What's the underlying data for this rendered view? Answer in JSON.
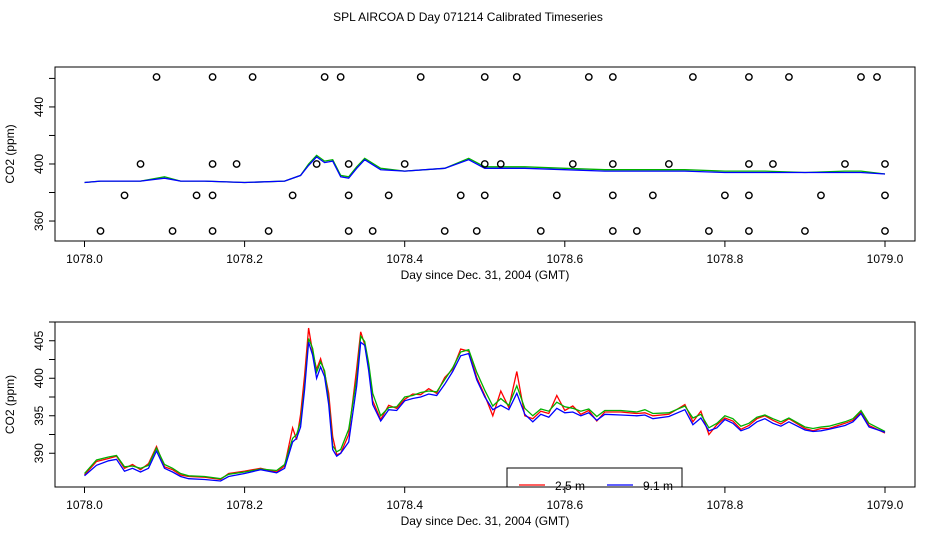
{
  "figure_title": "SPL AIRCOA D  Day 071214  Calibrated Timeseries",
  "colors": {
    "red": "#ff0000",
    "green": "#00b000",
    "blue": "#0000ff",
    "black": "#000000"
  },
  "chart_data": [
    {
      "type": "line",
      "title": "",
      "xlabel": "Day since Dec. 31, 2004 (GMT)",
      "ylabel": "CO2 (ppm)",
      "xlim": [
        1078.0,
        1079.0
      ],
      "ylim": [
        346,
        468
      ],
      "xticks": [
        "1078.0",
        "1078.2",
        "1078.4",
        "1078.6",
        "1078.8",
        "1079.0"
      ],
      "xtick_values": [
        1078.0,
        1078.2,
        1078.4,
        1078.6,
        1078.8,
        1079.0
      ],
      "yticks": [
        "360",
        "400",
        "440"
      ],
      "ytick_values": [
        360,
        400,
        440
      ],
      "series": [
        {
          "name": "green",
          "color": "green",
          "x": [
            1078.0,
            1078.02,
            1078.05,
            1078.07,
            1078.1,
            1078.12,
            1078.15,
            1078.2,
            1078.25,
            1078.27,
            1078.28,
            1078.29,
            1078.3,
            1078.31,
            1078.32,
            1078.33,
            1078.34,
            1078.35,
            1078.37,
            1078.4,
            1078.45,
            1078.48,
            1078.5,
            1078.55,
            1078.6,
            1078.65,
            1078.7,
            1078.75,
            1078.8,
            1078.85,
            1078.9,
            1078.95,
            1078.97,
            1079.0
          ],
          "values": [
            387,
            388,
            388,
            388,
            391,
            388,
            388,
            387,
            388,
            392,
            400,
            406,
            402,
            403,
            392,
            391,
            398,
            404,
            397,
            395,
            397,
            404,
            398,
            398,
            397,
            396,
            396,
            396,
            395,
            395,
            394,
            395,
            395,
            393
          ]
        },
        {
          "name": "blue",
          "color": "blue",
          "x": [
            1078.0,
            1078.02,
            1078.05,
            1078.07,
            1078.1,
            1078.12,
            1078.15,
            1078.2,
            1078.25,
            1078.27,
            1078.28,
            1078.29,
            1078.3,
            1078.31,
            1078.32,
            1078.33,
            1078.34,
            1078.35,
            1078.37,
            1078.4,
            1078.45,
            1078.48,
            1078.5,
            1078.55,
            1078.6,
            1078.65,
            1078.7,
            1078.75,
            1078.8,
            1078.85,
            1078.9,
            1078.95,
            1078.97,
            1079.0
          ],
          "values": [
            387,
            388,
            388,
            388,
            390,
            388,
            388,
            387,
            388,
            392,
            399,
            405,
            401,
            402,
            391,
            390,
            397,
            403,
            396,
            395,
            397,
            403,
            397,
            397,
            396,
            395,
            395,
            395,
            394,
            394,
            394,
            394,
            394,
            393
          ]
        }
      ],
      "points": {
        "x": [
          1078.09,
          1078.16,
          1078.21,
          1078.3,
          1078.32,
          1078.42,
          1078.5,
          1078.54,
          1078.63,
          1078.66,
          1078.76,
          1078.83,
          1078.88,
          1078.97,
          1078.99,
          1078.07,
          1078.16,
          1078.19,
          1078.29,
          1078.33,
          1078.4,
          1078.5,
          1078.52,
          1078.61,
          1078.66,
          1078.73,
          1078.83,
          1078.86,
          1078.95,
          1079.0,
          1078.05,
          1078.14,
          1078.16,
          1078.26,
          1078.33,
          1078.38,
          1078.47,
          1078.5,
          1078.59,
          1078.66,
          1078.71,
          1078.8,
          1078.83,
          1078.92,
          1079.0,
          1078.02,
          1078.11,
          1078.16,
          1078.23,
          1078.33,
          1078.36,
          1078.45,
          1078.49,
          1078.57,
          1078.66,
          1078.69,
          1078.78,
          1078.83,
          1078.9,
          1079.0
        ],
        "values": [
          461,
          461,
          461,
          461,
          461,
          461,
          461,
          461,
          461,
          461,
          461,
          461,
          461,
          461,
          461,
          400,
          400,
          400,
          400,
          400,
          400,
          400,
          400,
          400,
          400,
          400,
          400,
          400,
          400,
          400,
          378,
          378,
          378,
          378,
          378,
          378,
          378,
          378,
          378,
          378,
          378,
          378,
          378,
          378,
          378,
          353,
          353,
          353,
          353,
          353,
          353,
          353,
          353,
          353,
          353,
          353,
          353,
          353,
          353,
          353
        ]
      }
    },
    {
      "type": "line",
      "title": "",
      "xlabel": "Day since Dec. 31, 2004 (GMT)",
      "ylabel": "CO2 (ppm)",
      "xlim": [
        1078.0,
        1079.0
      ],
      "ylim": [
        385.5,
        407.5
      ],
      "xticks": [
        "1078.0",
        "1078.2",
        "1078.4",
        "1078.6",
        "1078.8",
        "1079.0"
      ],
      "xtick_values": [
        1078.0,
        1078.2,
        1078.4,
        1078.6,
        1078.8,
        1079.0
      ],
      "yticks": [
        "390",
        "395",
        "400",
        "405"
      ],
      "ytick_values": [
        390,
        395,
        400,
        405
      ],
      "x": [
        1078.0,
        1078.015,
        1078.03,
        1078.04,
        1078.05,
        1078.06,
        1078.07,
        1078.08,
        1078.09,
        1078.1,
        1078.11,
        1078.12,
        1078.13,
        1078.15,
        1078.17,
        1078.18,
        1078.2,
        1078.22,
        1078.24,
        1078.25,
        1078.26,
        1078.265,
        1078.27,
        1078.275,
        1078.28,
        1078.285,
        1078.29,
        1078.295,
        1078.3,
        1078.305,
        1078.31,
        1078.315,
        1078.32,
        1078.33,
        1078.34,
        1078.345,
        1078.35,
        1078.355,
        1078.36,
        1078.37,
        1078.38,
        1078.39,
        1078.4,
        1078.41,
        1078.42,
        1078.43,
        1078.44,
        1078.45,
        1078.46,
        1078.47,
        1078.48,
        1078.49,
        1078.5,
        1078.51,
        1078.52,
        1078.53,
        1078.54,
        1078.55,
        1078.56,
        1078.57,
        1078.58,
        1078.59,
        1078.6,
        1078.61,
        1078.62,
        1078.63,
        1078.64,
        1078.65,
        1078.67,
        1078.69,
        1078.7,
        1078.71,
        1078.73,
        1078.75,
        1078.76,
        1078.77,
        1078.78,
        1078.79,
        1078.8,
        1078.81,
        1078.82,
        1078.83,
        1078.84,
        1078.85,
        1078.86,
        1078.87,
        1078.88,
        1078.9,
        1078.91,
        1078.92,
        1078.93,
        1078.95,
        1078.96,
        1078.97,
        1078.98,
        1079.0
      ],
      "series": [
        {
          "name": "2.5 m",
          "color": "red",
          "values": [
            387.1,
            388.9,
            389.3,
            389.6,
            388.0,
            388.5,
            387.8,
            388.6,
            390.9,
            388.2,
            387.8,
            387.1,
            386.9,
            386.8,
            386.5,
            387.3,
            387.6,
            388.0,
            387.5,
            388.3,
            393.4,
            391.8,
            395.2,
            400.4,
            406.7,
            403.5,
            401.2,
            402.6,
            400.7,
            398.0,
            392.2,
            389.8,
            390.0,
            392.5,
            401.3,
            406.2,
            404.5,
            401.5,
            397.0,
            394.5,
            396.4,
            396.0,
            397.2,
            397.9,
            397.8,
            398.6,
            398.0,
            400.1,
            401.2,
            403.9,
            403.6,
            400.1,
            397.7,
            395.0,
            398.3,
            396.1,
            400.9,
            395.0,
            394.6,
            395.6,
            395.3,
            397.7,
            395.7,
            396.3,
            395.2,
            395.7,
            394.3,
            395.5,
            395.5,
            395.3,
            395.4,
            395.0,
            395.2,
            396.5,
            394.2,
            395.6,
            392.5,
            393.8,
            394.7,
            394.3,
            393.2,
            393.7,
            394.6,
            395.0,
            394.4,
            393.9,
            394.6,
            393.3,
            393.0,
            393.3,
            393.3,
            394.0,
            394.4,
            395.5,
            393.7,
            392.7
          ]
        },
        {
          "name": "green",
          "color": "green",
          "values": [
            387.3,
            389.1,
            389.5,
            389.7,
            388.2,
            388.3,
            388.0,
            388.4,
            390.7,
            388.5,
            388.0,
            387.3,
            387.0,
            386.9,
            386.6,
            387.2,
            387.5,
            387.9,
            387.7,
            388.5,
            392.0,
            392.5,
            394.2,
            399.0,
            405.3,
            404.0,
            400.8,
            402.2,
            401.0,
            397.0,
            391.0,
            390.2,
            390.5,
            393.2,
            400.0,
            405.6,
            404.9,
            402.0,
            398.0,
            395.0,
            396.1,
            396.2,
            397.5,
            397.7,
            398.1,
            398.3,
            398.2,
            399.8,
            401.4,
            403.5,
            403.8,
            400.8,
            398.4,
            396.3,
            397.3,
            396.4,
            399.0,
            396.0,
            395.0,
            395.9,
            395.6,
            396.8,
            396.2,
            396.0,
            395.6,
            395.9,
            394.9,
            395.7,
            395.7,
            395.5,
            395.8,
            395.3,
            395.4,
            396.3,
            394.7,
            395.2,
            393.4,
            394.0,
            395.0,
            394.6,
            393.6,
            394.0,
            394.8,
            395.1,
            394.6,
            394.2,
            394.7,
            393.5,
            393.3,
            393.5,
            393.6,
            394.2,
            394.6,
            395.7,
            394.0,
            392.9
          ]
        },
        {
          "name": "9.1 m",
          "color": "blue",
          "values": [
            387.0,
            388.4,
            389.0,
            389.2,
            387.6,
            388.0,
            387.5,
            388.0,
            390.3,
            388.0,
            387.5,
            386.9,
            386.6,
            386.5,
            386.3,
            386.9,
            387.3,
            387.8,
            387.4,
            388.0,
            391.5,
            392.0,
            393.5,
            398.5,
            404.8,
            403.1,
            400.0,
            401.5,
            400.2,
            396.5,
            390.5,
            389.6,
            390.0,
            391.5,
            399.0,
            404.8,
            404.4,
            401.0,
            396.5,
            394.3,
            395.8,
            395.7,
            397.0,
            397.3,
            397.5,
            397.9,
            397.7,
            399.2,
            400.9,
            403.0,
            403.3,
            399.8,
            397.5,
            395.8,
            396.4,
            395.8,
            398.0,
            395.2,
            394.2,
            395.2,
            394.8,
            396.0,
            395.4,
            395.5,
            395.0,
            395.4,
            394.4,
            395.2,
            395.1,
            395.0,
            395.1,
            394.6,
            394.9,
            395.8,
            393.8,
            394.7,
            393.0,
            393.4,
            394.5,
            394.0,
            393.0,
            393.4,
            394.2,
            394.6,
            394.0,
            393.6,
            394.2,
            393.1,
            392.9,
            393.0,
            393.2,
            393.7,
            394.2,
            395.3,
            393.5,
            392.8
          ]
        }
      ],
      "legend": {
        "placement": "bottom-center",
        "entries": [
          "2.5 m",
          "9.1 m"
        ]
      }
    }
  ]
}
